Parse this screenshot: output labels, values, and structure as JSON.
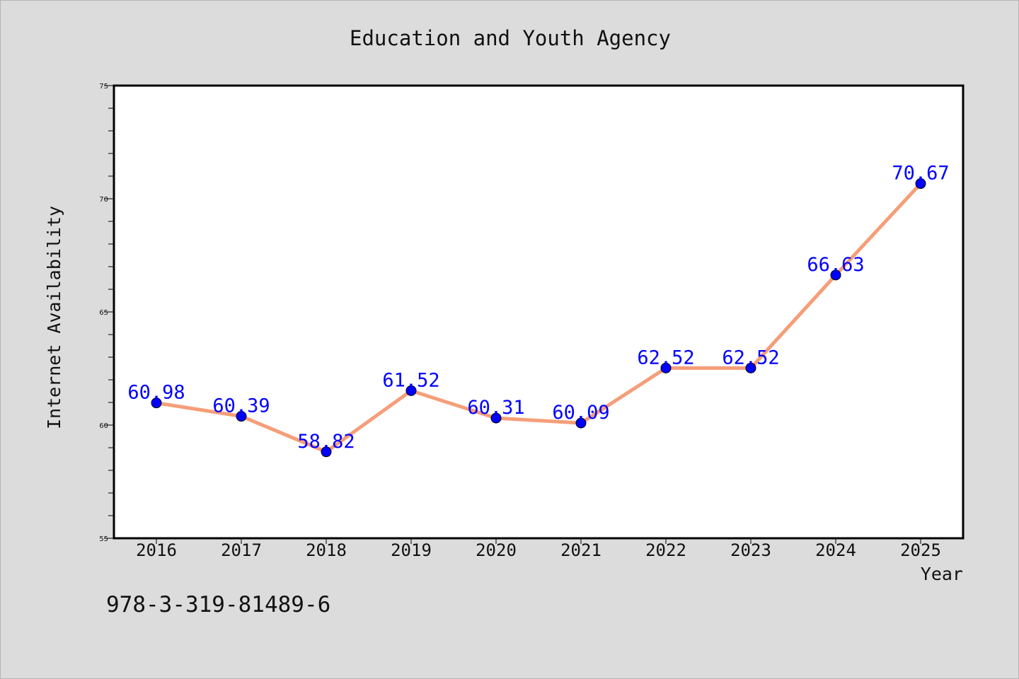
{
  "chart_data": {
    "type": "line",
    "title": "Education and Youth Agency",
    "xlabel": "Year",
    "ylabel": "Internet Availability",
    "categories": [
      "2016",
      "2017",
      "2018",
      "2019",
      "2020",
      "2021",
      "2022",
      "2023",
      "2024",
      "2025"
    ],
    "values": [
      60.98,
      60.39,
      58.82,
      61.52,
      60.31,
      60.09,
      62.52,
      62.52,
      66.63,
      70.67
    ],
    "data_labels": [
      "60.98",
      "60.39",
      "58.82",
      "61.52",
      "60.31",
      "60.09",
      "62.52",
      "62.52",
      "66.63",
      "70.67"
    ],
    "ylim": [
      55,
      75
    ],
    "yticks": [
      55,
      60,
      65,
      70,
      75
    ],
    "grid": false,
    "legend": "none",
    "line_color": "#f59e79",
    "marker_color": "#0000ff",
    "label_color": "#0000ff",
    "background_color": "#dcdcdc",
    "plot_background_color": "#ffffff"
  },
  "footer": {
    "identifier": "978-3-319-81489-6"
  }
}
